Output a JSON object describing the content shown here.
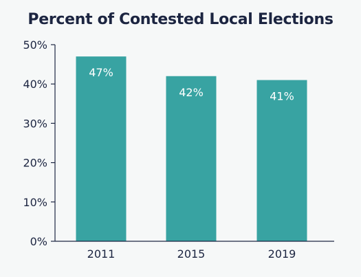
{
  "chart_data": {
    "type": "bar",
    "title": "Percent of Contested Local Elections",
    "categories": [
      "2011",
      "2015",
      "2019"
    ],
    "values": [
      47,
      42,
      41
    ],
    "data_labels": [
      "47%",
      "42%",
      "41%"
    ],
    "y_ticks": [
      "0%",
      "10%",
      "20%",
      "30%",
      "40%",
      "50%"
    ],
    "ylim": [
      0,
      50
    ],
    "xlabel": "",
    "ylabel": "",
    "grid": false,
    "colors": {
      "bar": "#38a3a2",
      "axis": "#1c2541",
      "text": "#1c2541",
      "data_label": "#ffffff",
      "background": "#f6f8f8"
    }
  }
}
